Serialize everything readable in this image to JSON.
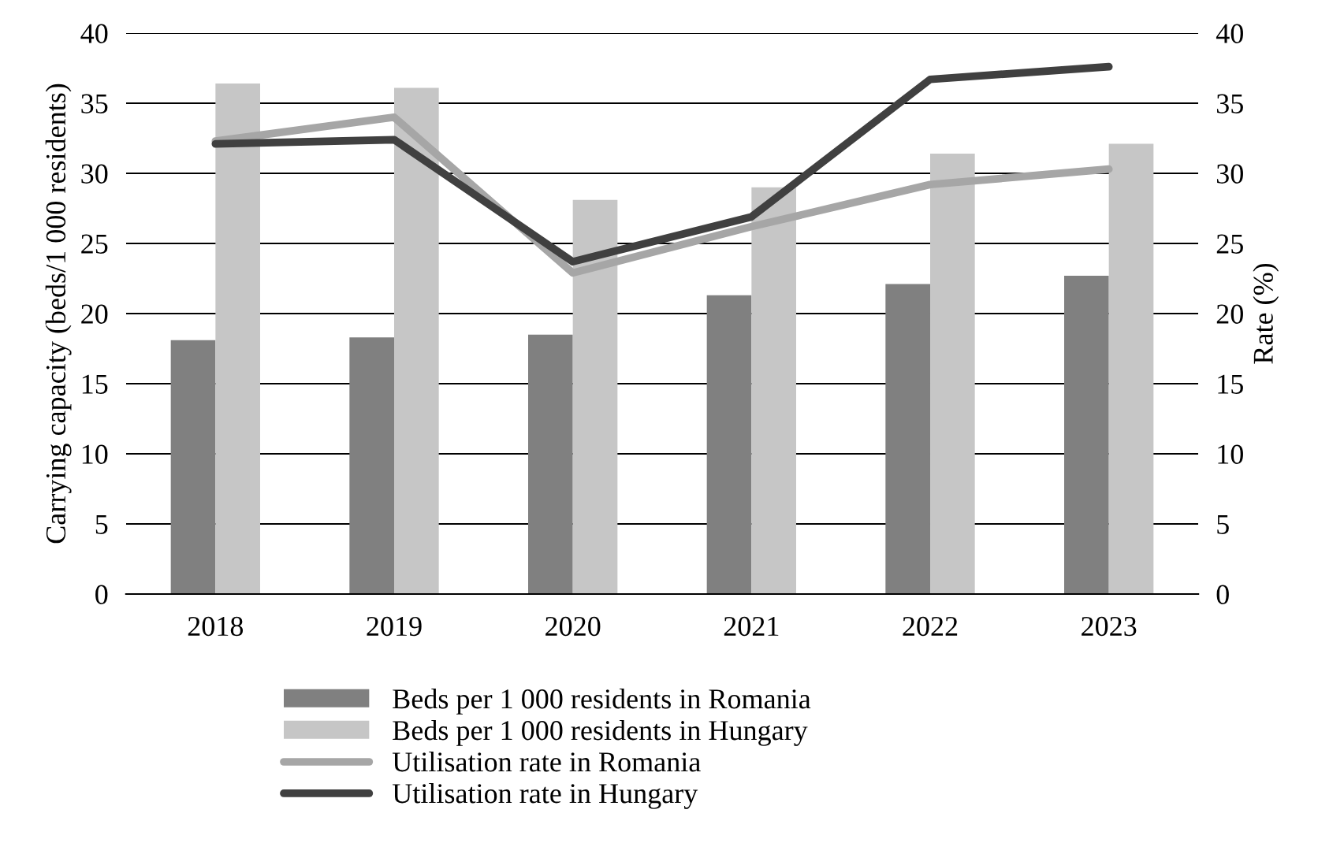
{
  "chart_data": {
    "type": "bar",
    "ylabel": "Carrying capacity (beds/1 000 residents)",
    "y2label": "Rate (%)",
    "categories": [
      "2018",
      "2019",
      "2020",
      "2021",
      "2022",
      "2023"
    ],
    "series": [
      {
        "name": "Beds per 1 000 residents in Romania",
        "color": "#808080",
        "values": [
          18.1,
          18.3,
          18.5,
          21.3,
          22.1,
          22.7
        ]
      },
      {
        "name": "Beds per 1 000 residents in Hungary",
        "color": "#c6c6c6",
        "values": [
          36.4,
          36.1,
          28.1,
          29.0,
          31.4,
          32.1
        ]
      },
      {
        "name": "Utilisation rate in Romania",
        "type": "line",
        "axis": "y2",
        "color": "#a6a6a6",
        "values": [
          32.3,
          34.0,
          22.9,
          26.2,
          29.2,
          30.3
        ]
      },
      {
        "name": "Utilisation rate in Hungary",
        "type": "line",
        "axis": "y2",
        "color": "#404040",
        "values": [
          32.1,
          32.4,
          23.7,
          26.9,
          36.7,
          37.6
        ]
      }
    ],
    "ylim": [
      0,
      40
    ],
    "yticks": [
      0,
      5,
      10,
      15,
      20,
      25,
      30,
      35,
      40
    ],
    "y2lim": [
      0,
      40
    ],
    "y2ticks": [
      0,
      5,
      10,
      15,
      20,
      25,
      30,
      35,
      40
    ],
    "grid": "y",
    "legend": "bottom",
    "marker": "none",
    "line_style": "solid"
  }
}
